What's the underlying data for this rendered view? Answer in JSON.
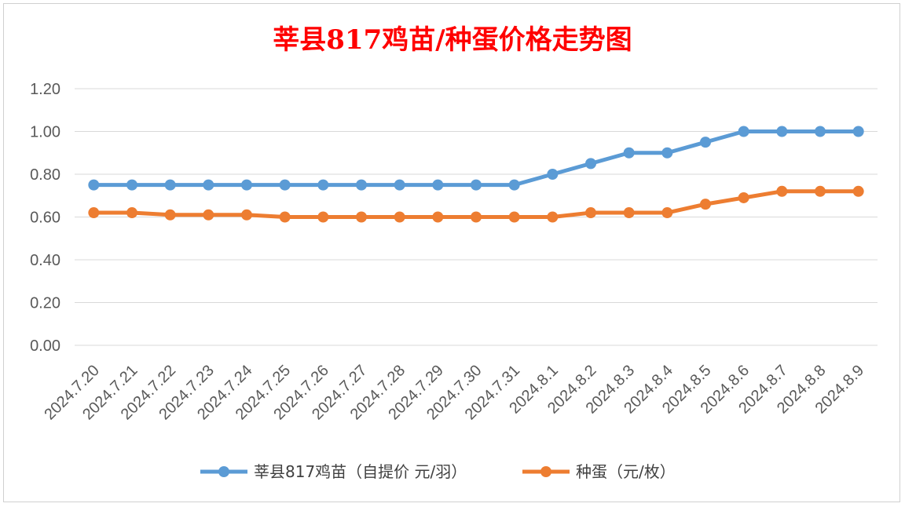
{
  "chart_data": {
    "type": "line",
    "title": "莘县817鸡苗/种蛋价格走势图",
    "title_color": "#ff0000",
    "categories": [
      "2024.7.20",
      "2024.7.21",
      "2024.7.22",
      "2024.7.23",
      "2024.7.24",
      "2024.7.25",
      "2024.7.26",
      "2024.7.27",
      "2024.7.28",
      "2024.7.29",
      "2024.7.30",
      "2024.7.31",
      "2024.8.1",
      "2024.8.2",
      "2024.8.3",
      "2024.8.4",
      "2024.8.5",
      "2024.8.6",
      "2024.8.7",
      "2024.8.8",
      "2024.8.9"
    ],
    "series": [
      {
        "name": "莘县817鸡苗（自提价 元/羽）",
        "color": "#5b9bd5",
        "values": [
          0.75,
          0.75,
          0.75,
          0.75,
          0.75,
          0.75,
          0.75,
          0.75,
          0.75,
          0.75,
          0.75,
          0.75,
          0.8,
          0.85,
          0.9,
          0.9,
          0.95,
          1.0,
          1.0,
          1.0,
          1.0
        ]
      },
      {
        "name": "种蛋（元/枚）",
        "color": "#ed7d31",
        "values": [
          0.62,
          0.62,
          0.61,
          0.61,
          0.61,
          0.6,
          0.6,
          0.6,
          0.6,
          0.6,
          0.6,
          0.6,
          0.6,
          0.62,
          0.62,
          0.62,
          0.66,
          0.69,
          0.72,
          0.72,
          0.72
        ]
      }
    ],
    "ylim": [
      0,
      1.2
    ],
    "yticks": [
      "0.00",
      "0.20",
      "0.40",
      "0.60",
      "0.80",
      "1.00",
      "1.20"
    ],
    "grid": true,
    "legend": "bottom",
    "xlabel": "",
    "ylabel": ""
  }
}
